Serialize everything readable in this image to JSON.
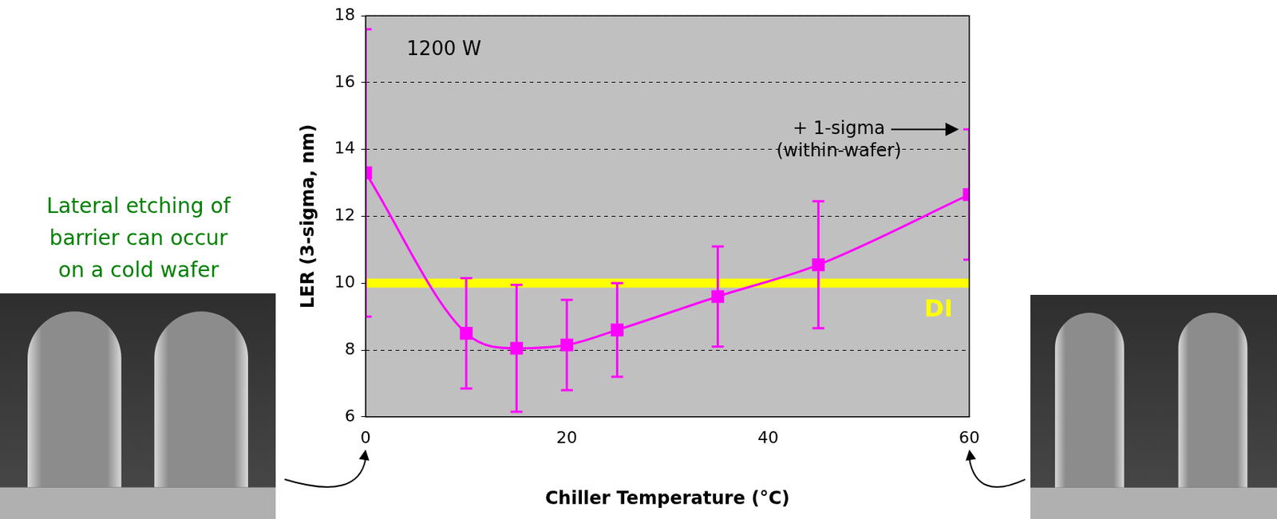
{
  "chart_data": {
    "type": "line",
    "x": [
      0,
      10,
      15,
      20,
      25,
      35,
      45,
      60
    ],
    "values": [
      13.3,
      8.5,
      8.05,
      8.15,
      8.6,
      9.6,
      10.55,
      12.65
    ],
    "errors": [
      4.3,
      1.65,
      1.9,
      1.35,
      1.4,
      1.5,
      1.9,
      1.95
    ],
    "color": "#ff00ff",
    "marker": "square",
    "line_style": "solid",
    "xlim": [
      0,
      60
    ],
    "xticks": [
      0,
      20,
      40,
      60
    ],
    "ylim": [
      6,
      18
    ],
    "yticks": [
      6,
      8,
      10,
      12,
      14,
      16,
      18
    ],
    "grid": true,
    "x_label": "Chiller Temperature (°C)",
    "y_label": "LER (3-sigma, nm)",
    "reference_line": {
      "value": 10,
      "label": "DI",
      "color": "#ffff00"
    },
    "annotations": {
      "power": "1200 W",
      "error_bar_note": [
        "+ 1-sigma",
        "(within-wafer)"
      ]
    },
    "side_note": [
      "Lateral etching of",
      "barrier can occur",
      "on a cold wafer"
    ]
  }
}
